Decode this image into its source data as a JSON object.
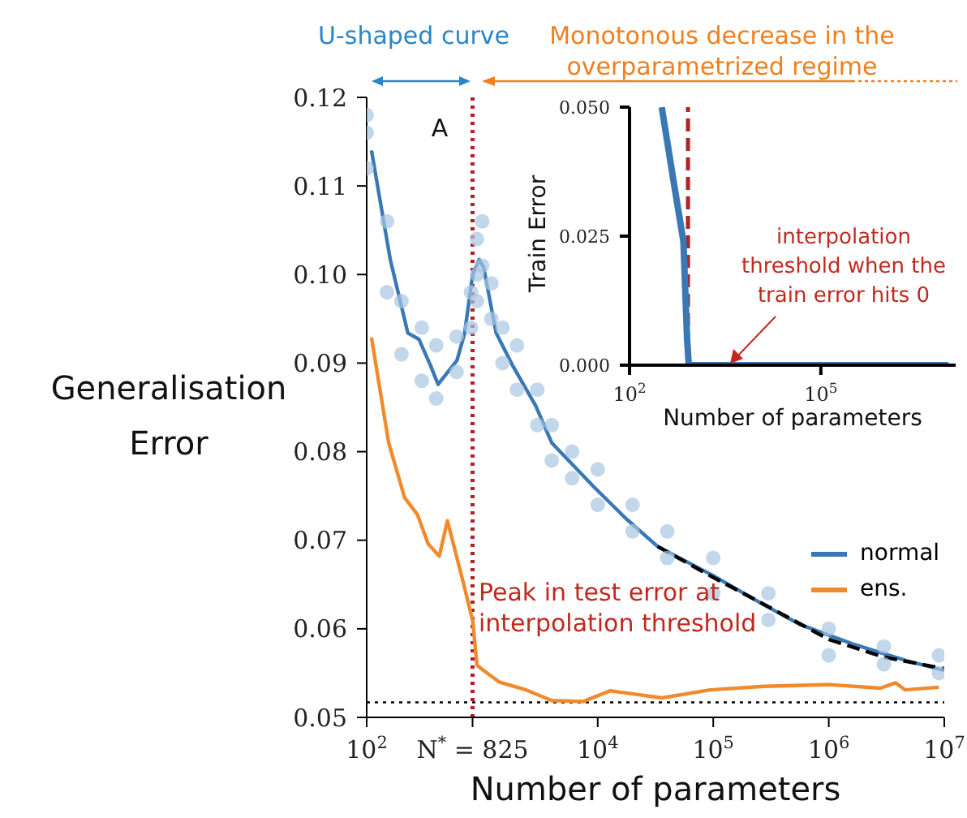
{
  "chart_data": [
    {
      "type": "line",
      "xlabel": "Number of parameters",
      "ylabel": "Generalisation Error",
      "log": "x",
      "grid": false,
      "legend": "center right",
      "marker": "none",
      "xlim": [
        100,
        10000000
      ],
      "xticks": [
        {
          "value": 100,
          "label": "10$^{2}$"
        },
        {
          "value": 825,
          "label": "N$^{*}$ = 825"
        },
        {
          "value": 10000,
          "label": "10$^{4}$"
        },
        {
          "value": 100000,
          "label": "10$^{5}$"
        },
        {
          "value": 1000000,
          "label": "10$^{6}$"
        },
        {
          "value": 10000000,
          "label": "10$^{7}$"
        }
      ],
      "ylim": [
        0.05,
        0.12
      ],
      "yticks": [
        0.05,
        0.06,
        0.07,
        0.08,
        0.09,
        {
          "value": 0.1,
          "label": "0.10"
        },
        0.11,
        0.12
      ],
      "series": [
        {
          "type": "scatter",
          "color": "#a9c6e2",
          "marker": "circle",
          "x": [
            100,
            100,
            100,
            150,
            150,
            200,
            200,
            300,
            300,
            400,
            400,
            600,
            600,
            800,
            800,
            900,
            900,
            900,
            1000,
            1000,
            1200,
            1200,
            1500,
            1500,
            2000,
            2000,
            3000,
            3000,
            4000,
            4000,
            6000,
            6000,
            10000,
            10000,
            20000,
            20000,
            40000,
            40000,
            100000,
            100000,
            300000,
            300000,
            1000000,
            1000000,
            3000000,
            3000000,
            9000000,
            9000000
          ],
          "values": [
            0.118,
            0.116,
            0.112,
            0.106,
            0.098,
            0.097,
            0.091,
            0.094,
            0.088,
            0.092,
            0.086,
            0.093,
            0.089,
            0.098,
            0.094,
            0.104,
            0.1,
            0.097,
            0.106,
            0.101,
            0.099,
            0.095,
            0.094,
            0.09,
            0.092,
            0.087,
            0.087,
            0.083,
            0.083,
            0.079,
            0.08,
            0.077,
            0.078,
            0.074,
            0.074,
            0.071,
            0.071,
            0.068,
            0.068,
            0.064,
            0.064,
            0.061,
            0.06,
            0.057,
            0.058,
            0.056,
            0.057,
            0.055
          ]
        },
        {
          "type": "line",
          "name": "normal",
          "color": "#3a78b5",
          "line_style": "solid",
          "x": [
            110,
            160,
            227,
            283,
            355,
            415,
            605,
            705,
            825,
            940,
            1030,
            1320,
            1820,
            2900,
            4000,
            9300,
            17700,
            33000,
            100000,
            275000,
            560000,
            1600000,
            4700000,
            10000000
          ],
          "values": [
            0.114,
            0.1017,
            0.0934,
            0.0927,
            0.0898,
            0.0876,
            0.0903,
            0.0934,
            0.0999,
            0.1017,
            0.1008,
            0.0934,
            0.0898,
            0.0852,
            0.081,
            0.076,
            0.0724,
            0.0693,
            0.066,
            0.0627,
            0.0605,
            0.0583,
            0.0564,
            0.0553
          ]
        },
        {
          "type": "line",
          "name": "ens.",
          "color": "#f08a2c",
          "line_style": "solid",
          "x": [
            110,
            155,
            213,
            275,
            340,
            425,
            500,
            690,
            830,
            900,
            1030,
            1400,
            2400,
            4000,
            7500,
            12800,
            36000,
            94000,
            275000,
            1000000,
            2800000,
            3800000,
            4600000,
            9000000
          ],
          "values": [
            0.0929,
            0.081,
            0.0748,
            0.0729,
            0.0696,
            0.0682,
            0.0722,
            0.0651,
            0.0608,
            0.0559,
            0.0553,
            0.054,
            0.0531,
            0.0519,
            0.0518,
            0.053,
            0.0522,
            0.0531,
            0.0535,
            0.0537,
            0.0533,
            0.0539,
            0.0531,
            0.0534
          ]
        },
        {
          "type": "line",
          "color": "#000000",
          "line_style": "dashed",
          "x": [
            33000,
            100000,
            300000,
            1000000,
            3000000,
            10000000
          ],
          "values": [
            0.0693,
            0.0658,
            0.0625,
            0.0588,
            0.0568,
            0.0555
          ]
        }
      ],
      "ref_lines": [
        {
          "axis": "x",
          "value": 825,
          "color": "#b22222",
          "line_style": "dotted"
        },
        {
          "axis": "y",
          "value": 0.0517,
          "color": "#000000",
          "line_style": "dotted"
        }
      ],
      "annotations": [
        "U-shaped curve",
        "Monotonous decrease in the overparametrized regime",
        "A",
        "Peak in test error at interpolation threshold"
      ]
    },
    {
      "type": "line",
      "xlabel": "Number of parameters",
      "ylabel": "Train Error",
      "log": "x",
      "grid": false,
      "marker": "none",
      "xlim": [
        100,
        13000000
      ],
      "xticks": [
        {
          "value": 100,
          "label": "10$^{2}$"
        },
        {
          "value": 100000,
          "label": "10$^{5}$"
        }
      ],
      "ylim": [
        0,
        0.05
      ],
      "yticks": [
        {
          "value": 0,
          "label": "0.000"
        },
        0.025,
        {
          "value": 0.05,
          "label": "0.050"
        }
      ],
      "series": [
        {
          "type": "line",
          "color": "#3a78b5",
          "line_style": "solid",
          "x": [
            320,
            500,
            700,
            800,
            850,
            10000,
            10000000
          ],
          "values": [
            0.05,
            0.035,
            0.024,
            0.005,
            0,
            0,
            0
          ]
        }
      ],
      "ref_lines": [
        {
          "axis": "x",
          "value": 825,
          "color": "#b22222",
          "line_style": "dashed"
        }
      ],
      "annotations": [
        "interpolation threshold when the train error hits 0"
      ]
    }
  ]
}
